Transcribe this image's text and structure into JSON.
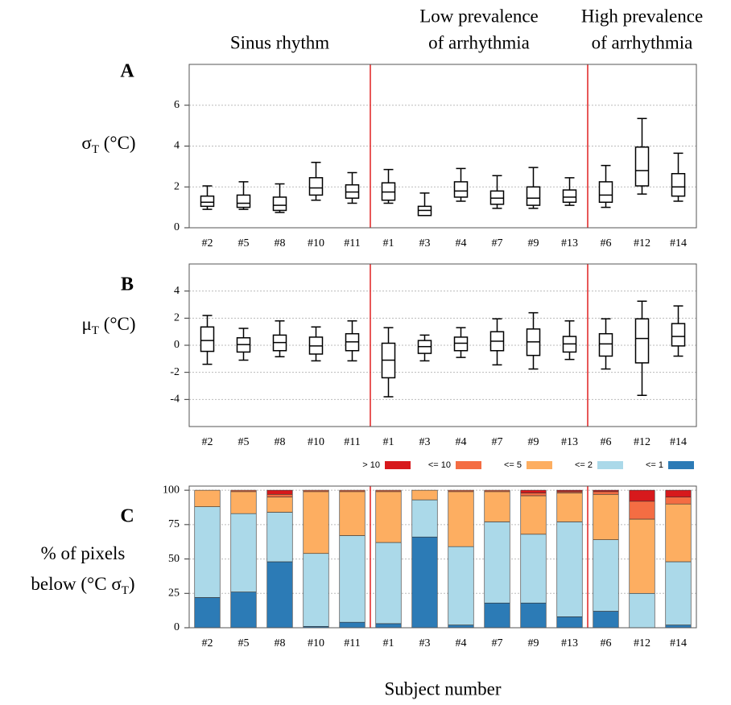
{
  "groups": [
    {
      "lines": [
        "Sinus rhythm"
      ],
      "subjects": [
        "#2",
        "#5",
        "#8",
        "#10",
        "#11"
      ]
    },
    {
      "lines": [
        "Low prevalence",
        "of arrhythmia"
      ],
      "subjects": [
        "#1",
        "#3",
        "#4",
        "#7",
        "#9",
        "#13"
      ]
    },
    {
      "lines": [
        "High prevalence",
        "of arrhythmia"
      ],
      "subjects": [
        "#6",
        "#12",
        "#14"
      ]
    }
  ],
  "xlabel": "Subject number",
  "chart_data": [
    {
      "type": "box",
      "panel": "A",
      "ylabel": [
        [
          "σ",
          "T",
          " (°C)"
        ]
      ],
      "categories": [
        "#2",
        "#5",
        "#8",
        "#10",
        "#11",
        "#1",
        "#3",
        "#4",
        "#7",
        "#9",
        "#13",
        "#6",
        "#12",
        "#14"
      ],
      "values": [
        [
          0.9,
          1.05,
          1.25,
          1.55,
          2.05
        ],
        [
          0.9,
          1.0,
          1.2,
          1.6,
          2.25
        ],
        [
          0.75,
          0.85,
          1.1,
          1.5,
          2.15
        ],
        [
          1.35,
          1.6,
          1.95,
          2.45,
          3.2
        ],
        [
          1.2,
          1.45,
          1.75,
          2.1,
          2.7
        ],
        [
          1.2,
          1.35,
          1.75,
          2.2,
          2.85
        ],
        [
          0.6,
          0.6,
          0.85,
          1.05,
          1.7
        ],
        [
          1.3,
          1.5,
          1.8,
          2.25,
          2.9
        ],
        [
          0.95,
          1.15,
          1.45,
          1.8,
          2.55
        ],
        [
          0.95,
          1.1,
          1.45,
          2.0,
          2.95
        ],
        [
          1.1,
          1.25,
          1.5,
          1.85,
          2.45
        ],
        [
          1.0,
          1.25,
          1.6,
          2.25,
          3.05
        ],
        [
          1.65,
          2.05,
          2.8,
          3.95,
          5.35
        ],
        [
          1.3,
          1.55,
          2.0,
          2.65,
          3.65
        ]
      ],
      "ylim": [
        0,
        8
      ],
      "yticks": [
        0,
        2,
        4,
        6
      ],
      "grid": true,
      "color": "#000000"
    },
    {
      "type": "box",
      "panel": "B",
      "ylabel": [
        [
          "μ",
          "T",
          " (°C)"
        ]
      ],
      "categories": [
        "#2",
        "#5",
        "#8",
        "#10",
        "#11",
        "#1",
        "#3",
        "#4",
        "#7",
        "#9",
        "#13",
        "#6",
        "#12",
        "#14"
      ],
      "values": [
        [
          -1.4,
          -0.45,
          0.35,
          1.35,
          2.2
        ],
        [
          -1.1,
          -0.5,
          0.05,
          0.55,
          1.25
        ],
        [
          -0.85,
          -0.4,
          0.2,
          0.75,
          1.8
        ],
        [
          -1.15,
          -0.65,
          -0.05,
          0.6,
          1.35
        ],
        [
          -1.15,
          -0.4,
          0.25,
          0.85,
          1.8
        ],
        [
          -3.8,
          -2.4,
          -1.1,
          0.15,
          1.3
        ],
        [
          -1.15,
          -0.6,
          -0.1,
          0.35,
          0.75
        ],
        [
          -0.9,
          -0.4,
          0.15,
          0.6,
          1.3
        ],
        [
          -1.45,
          -0.4,
          0.3,
          1.0,
          1.95
        ],
        [
          -1.75,
          -0.75,
          0.25,
          1.2,
          2.4
        ],
        [
          -1.05,
          -0.5,
          0.1,
          0.65,
          1.8
        ],
        [
          -1.75,
          -0.8,
          0.1,
          0.85,
          1.95
        ],
        [
          -3.7,
          -1.3,
          0.5,
          1.95,
          3.25
        ],
        [
          -0.8,
          -0.05,
          0.65,
          1.6,
          2.9
        ]
      ],
      "ylim": [
        -6,
        6
      ],
      "yticks": [
        -4,
        -2,
        0,
        2,
        4
      ],
      "grid": true,
      "color": "#000000"
    },
    {
      "type": "stacked_bar",
      "panel": "C",
      "ylabel": [
        [
          "% of pixels"
        ],
        [
          "below (°C σ",
          "T",
          ")"
        ]
      ],
      "categories": [
        "#2",
        "#5",
        "#8",
        "#10",
        "#11",
        "#1",
        "#3",
        "#4",
        "#7",
        "#9",
        "#13",
        "#6",
        "#12",
        "#14"
      ],
      "series": [
        {
          "name": "> 10",
          "color": "#d7191c",
          "values": [
            0,
            0,
            3,
            0,
            0,
            0,
            0,
            0,
            0,
            2,
            1,
            1,
            8,
            5
          ]
        },
        {
          "name": "<= 10",
          "color": "#f46d43",
          "values": [
            0,
            1,
            2,
            1,
            1,
            1,
            0,
            1,
            1,
            2,
            1,
            2,
            13,
            5
          ]
        },
        {
          "name": "<= 5",
          "color": "#fdae61",
          "values": [
            12,
            16,
            11,
            45,
            32,
            37,
            7,
            40,
            22,
            28,
            21,
            33,
            54,
            42
          ]
        },
        {
          "name": "<= 2",
          "color": "#abd9e9",
          "values": [
            66,
            57,
            36,
            53,
            63,
            59,
            27,
            57,
            59,
            50,
            69,
            52,
            25,
            46
          ]
        },
        {
          "name": "<= 1",
          "color": "#2c7bb6",
          "values": [
            22,
            26,
            48,
            1,
            4,
            3,
            66,
            2,
            18,
            18,
            8,
            12,
            0,
            2
          ]
        }
      ],
      "ylim": [
        0,
        103
      ],
      "yticks": [
        0,
        25,
        50,
        75,
        100
      ],
      "grid": true,
      "legend": "top"
    }
  ]
}
